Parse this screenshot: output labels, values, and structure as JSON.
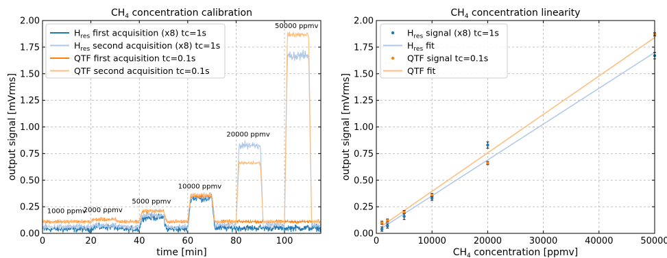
{
  "chart_data": [
    {
      "type": "line",
      "title": "CH4 concentration calibration",
      "title_parts": {
        "pre": "CH",
        "sub": "4",
        "post": " concentration calibration"
      },
      "xlabel": "time [min]",
      "ylabel": "output signal [mVrms]",
      "xlim": [
        0,
        115
      ],
      "ylim": [
        0,
        2.0
      ],
      "xticks": [
        "0",
        "20",
        "40",
        "60",
        "80",
        "100"
      ],
      "yticks": [
        "0.00",
        "0.25",
        "0.50",
        "0.75",
        "1.00",
        "1.25",
        "1.50",
        "1.75",
        "2.00"
      ],
      "grid": true,
      "legend_position": "top-left",
      "legend": [
        {
          "pre": "H",
          "sub": "res",
          "post": " first acquisition (x8) tc=1s",
          "color": "#1f77b4"
        },
        {
          "pre": "H",
          "sub": "res",
          "post": " second acquisition (x8) tc=1s",
          "color": "#aec7e8"
        },
        {
          "pre": "QTF first acquisition tc=0.1s",
          "sub": "",
          "post": "",
          "color": "#ff7f0e"
        },
        {
          "pre": "QTF second acquisition tc=0.1s",
          "sub": "",
          "post": "",
          "color": "#ffbb78"
        }
      ],
      "steps": {
        "time_edges": [
          0,
          20,
          30,
          40,
          50,
          60,
          70,
          80,
          90,
          100,
          110,
          115
        ],
        "series": [
          {
            "name": "Hres first acquisition (x8) tc=1s",
            "color": "#1f77b4",
            "levels": [
              0.04,
              0.06,
              0.04,
              0.15,
              0.04,
              0.33,
              0.05,
              0.05,
              0.05,
              0.05,
              0.05
            ],
            "noise": 0.045
          },
          {
            "name": "Hres second acquisition (x8) tc=1s",
            "color": "#aec7e8",
            "levels": [
              0.06,
              0.07,
              0.06,
              0.17,
              0.06,
              0.35,
              0.08,
              0.83,
              0.08,
              1.67,
              0.08
            ],
            "noise": 0.04
          },
          {
            "name": "QTF first acquisition tc=0.1s",
            "color": "#ff7f0e",
            "levels": [
              0.11,
              0.13,
              0.11,
              0.21,
              0.11,
              0.35,
              0.11,
              0.11,
              0.11,
              0.11,
              0.11
            ],
            "noise": 0.02
          },
          {
            "name": "QTF second acquisition tc=0.1s",
            "color": "#ffbb78",
            "levels": [
              0.11,
              0.13,
              0.11,
              0.21,
              0.11,
              0.36,
              0.11,
              0.66,
              0.11,
              1.87,
              0.11
            ],
            "noise": 0.02
          }
        ]
      },
      "annotations": [
        {
          "text": "1000 ppmv",
          "x": 10,
          "y": 0.19
        },
        {
          "text": "2000 ppmv",
          "x": 25,
          "y": 0.2
        },
        {
          "text": "5000 ppmv",
          "x": 45,
          "y": 0.28
        },
        {
          "text": "10000 ppmv",
          "x": 65,
          "y": 0.42
        },
        {
          "text": "20000 ppmv",
          "x": 85,
          "y": 0.91
        },
        {
          "text": "50000 ppmv",
          "x": 105,
          "y": 1.93
        }
      ]
    },
    {
      "type": "scatter",
      "title": "CH4 concentration linearity",
      "title_parts": {
        "pre": "CH",
        "sub": "4",
        "post": " concentration linearity"
      },
      "xlabel": "CH4 concentration [ppmv]",
      "xlabel_parts": {
        "pre": "CH",
        "sub": "4",
        "post": " concentration [ppmv]"
      },
      "ylabel": "output signal [mVrms]",
      "xlim": [
        0,
        50000
      ],
      "ylim": [
        0,
        2.0
      ],
      "xticks": [
        0,
        10000,
        20000,
        30000,
        40000,
        50000
      ],
      "yticks": [
        "0.00",
        "0.25",
        "0.50",
        "0.75",
        "1.00",
        "1.25",
        "1.50",
        "1.75",
        "2.00"
      ],
      "grid": true,
      "legend_position": "top-left",
      "legend": [
        {
          "pre": "H",
          "sub": "res",
          "post": " signal (x8) tc=1s",
          "color": "#1f77b4",
          "kind": "point"
        },
        {
          "pre": "H",
          "sub": "res",
          "post": " fit",
          "color": "#aec7e8",
          "kind": "line"
        },
        {
          "pre": "QTF signal tc=0.1s",
          "sub": "",
          "post": "",
          "color": "#ff7f0e",
          "kind": "point"
        },
        {
          "pre": "QTF fit",
          "sub": "",
          "post": "",
          "color": "#ffbb78",
          "kind": "line"
        }
      ],
      "series": [
        {
          "name": "Hres signal (x8) tc=1s",
          "color": "#1f77b4",
          "points": [
            [
              1000,
              0.04
            ],
            [
              2000,
              0.07
            ],
            [
              5000,
              0.16
            ],
            [
              10000,
              0.33
            ],
            [
              20000,
              0.83
            ],
            [
              50000,
              1.67
            ]
          ],
          "err": [
            0.02,
            0.02,
            0.03,
            0.02,
            0.03,
            0.03
          ]
        },
        {
          "name": "QTF signal tc=0.1s",
          "color": "#ff7f0e",
          "points": [
            [
              1000,
              0.1
            ],
            [
              2000,
              0.12
            ],
            [
              5000,
              0.2
            ],
            [
              10000,
              0.36
            ],
            [
              20000,
              0.66
            ],
            [
              50000,
              1.87
            ]
          ],
          "err": [
            0.015,
            0.015,
            0.015,
            0.015,
            0.015,
            0.015
          ]
        }
      ],
      "fits": [
        {
          "name": "Hres fit",
          "color": "#aec7e8",
          "x": [
            1000,
            50000
          ],
          "y": [
            0.05,
            1.7
          ]
        },
        {
          "name": "QTF fit",
          "color": "#ffbb78",
          "x": [
            1000,
            50000
          ],
          "y": [
            0.07,
            1.84
          ]
        }
      ]
    }
  ]
}
